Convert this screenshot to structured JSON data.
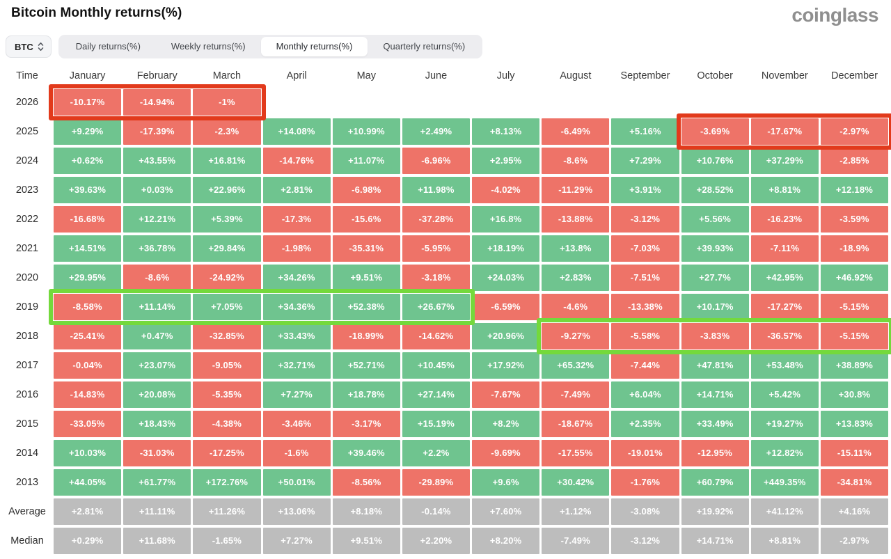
{
  "page": {
    "title": "Bitcoin Monthly returns(%)",
    "logo": "coinglass"
  },
  "controls": {
    "symbol_selector": {
      "label": "BTC",
      "icon": "updown-chevron-icon"
    },
    "tabs": [
      {
        "label": "Daily returns(%)",
        "active": false
      },
      {
        "label": "Weekly returns(%)",
        "active": false
      },
      {
        "label": "Monthly returns(%)",
        "active": true
      },
      {
        "label": "Quarterly returns(%)",
        "active": false
      }
    ]
  },
  "table": {
    "time_header": "Time",
    "months": [
      "January",
      "February",
      "March",
      "April",
      "May",
      "June",
      "July",
      "August",
      "September",
      "October",
      "November",
      "December"
    ],
    "rows": [
      {
        "label": "2026",
        "type": "year",
        "values": [
          "-10.17%",
          "-14.94%",
          "-1%",
          "",
          "",
          "",
          "",
          "",
          "",
          "",
          "",
          ""
        ]
      },
      {
        "label": "2025",
        "type": "year",
        "values": [
          "+9.29%",
          "-17.39%",
          "-2.3%",
          "+14.08%",
          "+10.99%",
          "+2.49%",
          "+8.13%",
          "-6.49%",
          "+5.16%",
          "-3.69%",
          "-17.67%",
          "-2.97%"
        ]
      },
      {
        "label": "2024",
        "type": "year",
        "values": [
          "+0.62%",
          "+43.55%",
          "+16.81%",
          "-14.76%",
          "+11.07%",
          "-6.96%",
          "+2.95%",
          "-8.6%",
          "+7.29%",
          "+10.76%",
          "+37.29%",
          "-2.85%"
        ]
      },
      {
        "label": "2023",
        "type": "year",
        "values": [
          "+39.63%",
          "+0.03%",
          "+22.96%",
          "+2.81%",
          "-6.98%",
          "+11.98%",
          "-4.02%",
          "-11.29%",
          "+3.91%",
          "+28.52%",
          "+8.81%",
          "+12.18%"
        ]
      },
      {
        "label": "2022",
        "type": "year",
        "values": [
          "-16.68%",
          "+12.21%",
          "+5.39%",
          "-17.3%",
          "-15.6%",
          "-37.28%",
          "+16.8%",
          "-13.88%",
          "-3.12%",
          "+5.56%",
          "-16.23%",
          "-3.59%"
        ]
      },
      {
        "label": "2021",
        "type": "year",
        "values": [
          "+14.51%",
          "+36.78%",
          "+29.84%",
          "-1.98%",
          "-35.31%",
          "-5.95%",
          "+18.19%",
          "+13.8%",
          "-7.03%",
          "+39.93%",
          "-7.11%",
          "-18.9%"
        ]
      },
      {
        "label": "2020",
        "type": "year",
        "values": [
          "+29.95%",
          "-8.6%",
          "-24.92%",
          "+34.26%",
          "+9.51%",
          "-3.18%",
          "+24.03%",
          "+2.83%",
          "-7.51%",
          "+27.7%",
          "+42.95%",
          "+46.92%"
        ]
      },
      {
        "label": "2019",
        "type": "year",
        "values": [
          "-8.58%",
          "+11.14%",
          "+7.05%",
          "+34.36%",
          "+52.38%",
          "+26.67%",
          "-6.59%",
          "-4.6%",
          "-13.38%",
          "+10.17%",
          "-17.27%",
          "-5.15%"
        ]
      },
      {
        "label": "2018",
        "type": "year",
        "values": [
          "-25.41%",
          "+0.47%",
          "-32.85%",
          "+33.43%",
          "-18.99%",
          "-14.62%",
          "+20.96%",
          "-9.27%",
          "-5.58%",
          "-3.83%",
          "-36.57%",
          "-5.15%"
        ]
      },
      {
        "label": "2017",
        "type": "year",
        "values": [
          "-0.04%",
          "+23.07%",
          "-9.05%",
          "+32.71%",
          "+52.71%",
          "+10.45%",
          "+17.92%",
          "+65.32%",
          "-7.44%",
          "+47.81%",
          "+53.48%",
          "+38.89%"
        ]
      },
      {
        "label": "2016",
        "type": "year",
        "values": [
          "-14.83%",
          "+20.08%",
          "-5.35%",
          "+7.27%",
          "+18.78%",
          "+27.14%",
          "-7.67%",
          "-7.49%",
          "+6.04%",
          "+14.71%",
          "+5.42%",
          "+30.8%"
        ]
      },
      {
        "label": "2015",
        "type": "year",
        "values": [
          "-33.05%",
          "+18.43%",
          "-4.38%",
          "-3.46%",
          "-3.17%",
          "+15.19%",
          "+8.2%",
          "-18.67%",
          "+2.35%",
          "+33.49%",
          "+19.27%",
          "+13.83%"
        ]
      },
      {
        "label": "2014",
        "type": "year",
        "values": [
          "+10.03%",
          "-31.03%",
          "-17.25%",
          "-1.6%",
          "+39.46%",
          "+2.2%",
          "-9.69%",
          "-17.55%",
          "-19.01%",
          "-12.95%",
          "+12.82%",
          "-15.11%"
        ]
      },
      {
        "label": "2013",
        "type": "year",
        "values": [
          "+44.05%",
          "+61.77%",
          "+172.76%",
          "+50.01%",
          "-8.56%",
          "-29.89%",
          "+9.6%",
          "+30.42%",
          "-1.76%",
          "+60.79%",
          "+449.35%",
          "-34.81%"
        ]
      },
      {
        "label": "Average",
        "type": "summary",
        "values": [
          "+2.81%",
          "+11.11%",
          "+11.26%",
          "+13.06%",
          "+8.18%",
          "-0.14%",
          "+7.60%",
          "+1.12%",
          "-3.08%",
          "+19.92%",
          "+41.12%",
          "+4.16%"
        ]
      },
      {
        "label": "Median",
        "type": "summary",
        "values": [
          "+0.29%",
          "+11.68%",
          "-1.65%",
          "+7.27%",
          "+9.51%",
          "+2.20%",
          "+8.20%",
          "-7.49%",
          "-3.12%",
          "+14.71%",
          "+8.81%",
          "-2.97%"
        ]
      }
    ],
    "highlights": [
      {
        "name": "highlight-box-2026-jan-mar",
        "row": 0,
        "col_start": 0,
        "col_end": 2,
        "color": "red"
      },
      {
        "name": "highlight-box-2025-oct-dec",
        "row": 1,
        "col_start": 9,
        "col_end": 11,
        "color": "red"
      },
      {
        "name": "highlight-box-2019-jan-jun",
        "row": 7,
        "col_start": 0,
        "col_end": 5,
        "color": "green"
      },
      {
        "name": "highlight-box-2018-aug-dec",
        "row": 8,
        "col_start": 7,
        "col_end": 11,
        "color": "green"
      }
    ]
  },
  "colors": {
    "positive": "#6fc48f",
    "negative": "#ee7368",
    "neutral": "#bdbdbd",
    "highlight_red": "#e23a1c",
    "highlight_green": "#74d93c"
  }
}
